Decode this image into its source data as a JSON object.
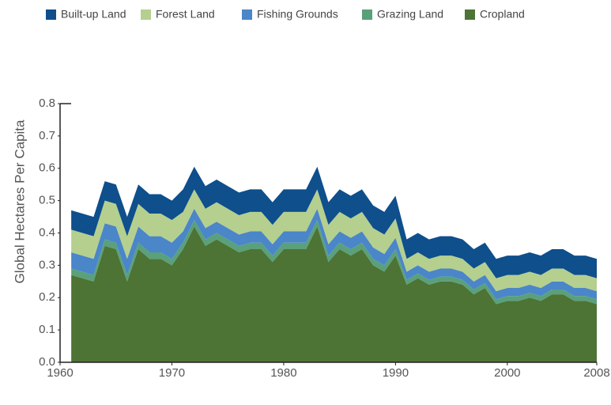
{
  "chart_data": {
    "type": "stacked-area",
    "y_label": "Global Hectares Per Capita",
    "x": [
      1961,
      1962,
      1963,
      1964,
      1965,
      1966,
      1967,
      1968,
      1969,
      1970,
      1971,
      1972,
      1973,
      1974,
      1975,
      1976,
      1977,
      1978,
      1979,
      1980,
      1981,
      1982,
      1983,
      1984,
      1985,
      1986,
      1987,
      1988,
      1989,
      1990,
      1991,
      1992,
      1993,
      1994,
      1995,
      1996,
      1997,
      1998,
      1999,
      2000,
      2001,
      2002,
      2003,
      2004,
      2005,
      2006,
      2007,
      2008
    ],
    "xlim": [
      1960,
      2008
    ],
    "xticks": [
      1960,
      1970,
      1980,
      1990,
      2000,
      2008
    ],
    "ylim": [
      0,
      0.8
    ],
    "yticks": [
      {
        "value": 0,
        "label": "0.0"
      },
      0.1,
      0.2,
      0.3,
      0.4,
      0.5,
      0.6,
      0.7,
      0.8
    ],
    "series": [
      {
        "name": "Built-up Land",
        "color": "#0e4f8c",
        "values": [
          0.06,
          0.06,
          0.06,
          0.06,
          0.06,
          0.06,
          0.06,
          0.06,
          0.06,
          0.06,
          0.07,
          0.07,
          0.07,
          0.07,
          0.07,
          0.07,
          0.07,
          0.07,
          0.07,
          0.07,
          0.07,
          0.07,
          0.07,
          0.07,
          0.07,
          0.07,
          0.07,
          0.07,
          0.07,
          0.07,
          0.06,
          0.06,
          0.06,
          0.06,
          0.06,
          0.06,
          0.06,
          0.06,
          0.06,
          0.06,
          0.06,
          0.06,
          0.06,
          0.06,
          0.06,
          0.06,
          0.06,
          0.06
        ]
      },
      {
        "name": "Forest Land",
        "color": "#b5cf8f",
        "values": [
          0.07,
          0.07,
          0.07,
          0.07,
          0.07,
          0.07,
          0.07,
          0.07,
          0.07,
          0.07,
          0.06,
          0.06,
          0.06,
          0.06,
          0.06,
          0.06,
          0.06,
          0.06,
          0.06,
          0.06,
          0.06,
          0.06,
          0.06,
          0.06,
          0.06,
          0.06,
          0.06,
          0.06,
          0.06,
          0.06,
          0.04,
          0.04,
          0.04,
          0.04,
          0.04,
          0.04,
          0.04,
          0.04,
          0.04,
          0.04,
          0.04,
          0.04,
          0.04,
          0.04,
          0.04,
          0.04,
          0.04,
          0.04
        ]
      },
      {
        "name": "Fishing Grounds",
        "color": "#4a86c8",
        "values": [
          0.05,
          0.05,
          0.05,
          0.05,
          0.05,
          0.05,
          0.05,
          0.05,
          0.05,
          0.05,
          0.035,
          0.035,
          0.035,
          0.035,
          0.035,
          0.035,
          0.035,
          0.035,
          0.035,
          0.035,
          0.035,
          0.035,
          0.035,
          0.035,
          0.035,
          0.035,
          0.035,
          0.035,
          0.035,
          0.035,
          0.025,
          0.025,
          0.025,
          0.025,
          0.025,
          0.025,
          0.025,
          0.025,
          0.025,
          0.025,
          0.025,
          0.025,
          0.025,
          0.025,
          0.025,
          0.025,
          0.025,
          0.025
        ]
      },
      {
        "name": "Grazing Land",
        "color": "#5aa07a",
        "values": [
          0.02,
          0.02,
          0.02,
          0.02,
          0.02,
          0.02,
          0.02,
          0.02,
          0.02,
          0.02,
          0.02,
          0.02,
          0.02,
          0.02,
          0.02,
          0.02,
          0.02,
          0.02,
          0.02,
          0.02,
          0.02,
          0.02,
          0.02,
          0.02,
          0.02,
          0.02,
          0.02,
          0.02,
          0.02,
          0.02,
          0.015,
          0.015,
          0.015,
          0.015,
          0.015,
          0.015,
          0.015,
          0.015,
          0.015,
          0.015,
          0.015,
          0.015,
          0.015,
          0.015,
          0.015,
          0.015,
          0.015,
          0.015
        ]
      },
      {
        "name": "Cropland",
        "color": "#4d7335",
        "values": [
          0.27,
          0.26,
          0.25,
          0.36,
          0.35,
          0.25,
          0.35,
          0.32,
          0.32,
          0.3,
          0.35,
          0.42,
          0.36,
          0.38,
          0.36,
          0.34,
          0.35,
          0.35,
          0.31,
          0.35,
          0.35,
          0.35,
          0.42,
          0.31,
          0.35,
          0.33,
          0.35,
          0.3,
          0.28,
          0.33,
          0.24,
          0.26,
          0.24,
          0.25,
          0.25,
          0.24,
          0.21,
          0.23,
          0.18,
          0.19,
          0.19,
          0.2,
          0.19,
          0.21,
          0.21,
          0.19,
          0.19,
          0.18
        ]
      }
    ]
  }
}
